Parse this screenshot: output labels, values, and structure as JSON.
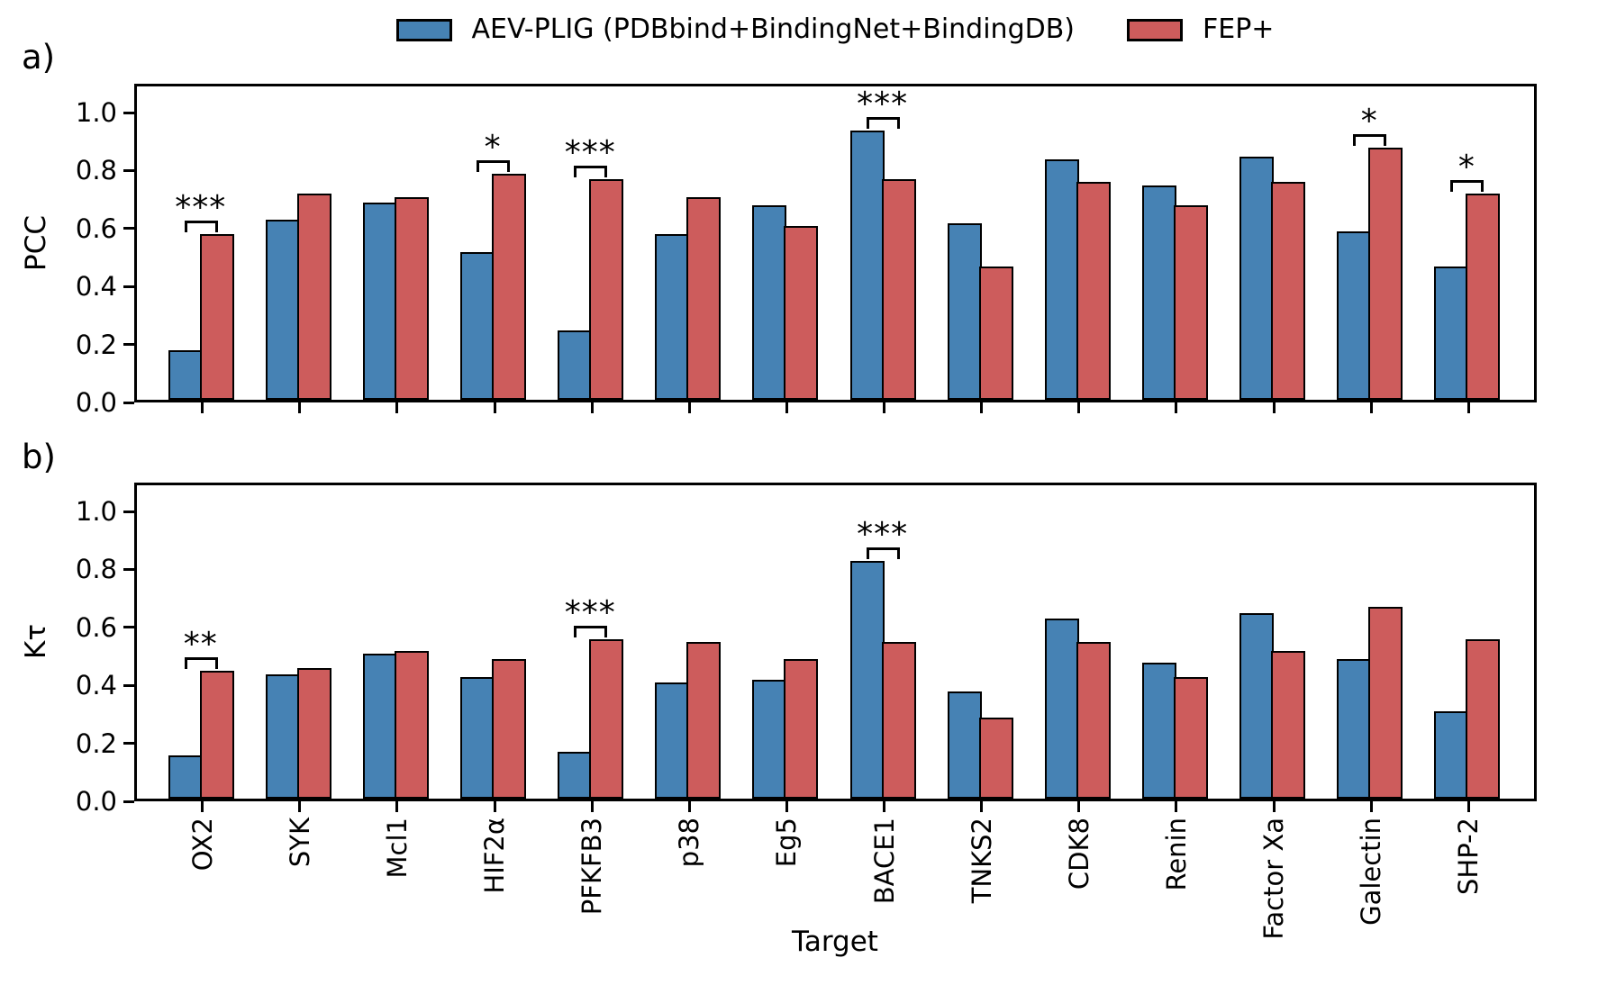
{
  "legend": {
    "items": [
      {
        "label": "AEV-PLIG (PDBbind+BindingNet+BindingDB)",
        "color": "#4682B4"
      },
      {
        "label": "FEP+",
        "color": "#CD5C5C"
      }
    ]
  },
  "panel_labels": {
    "a": "a)",
    "b": "b)"
  },
  "xlabel": "Target",
  "chart_data": [
    {
      "type": "bar",
      "panel": "a",
      "ylabel": "PCC",
      "ylim": [
        0,
        1.1
      ],
      "yticks": [
        "0.0",
        "0.2",
        "0.4",
        "0.6",
        "0.8",
        "1.0"
      ],
      "grid": false,
      "legend_position": "top-center",
      "categories": [
        "OX2",
        "SYK",
        "Mcl1",
        "HIF2α",
        "PFKFB3",
        "p38",
        "Eg5",
        "BACE1",
        "TNKS2",
        "CDK8",
        "Renin",
        "Factor Xa",
        "Galectin",
        "SHP-2"
      ],
      "series": [
        {
          "name": "AEV-PLIG (PDBbind+BindingNet+BindingDB)",
          "color": "#4682B4",
          "values": [
            0.17,
            0.62,
            0.68,
            0.51,
            0.24,
            0.57,
            0.67,
            0.93,
            0.61,
            0.83,
            0.74,
            0.84,
            0.58,
            0.46
          ]
        },
        {
          "name": "FEP+",
          "color": "#CD5C5C",
          "values": [
            0.57,
            0.71,
            0.7,
            0.78,
            0.76,
            0.7,
            0.6,
            0.76,
            0.46,
            0.75,
            0.67,
            0.75,
            0.87,
            0.71
          ]
        }
      ],
      "significance": [
        {
          "category": "OX2",
          "label": "***"
        },
        {
          "category": "HIF2α",
          "label": "*"
        },
        {
          "category": "PFKFB3",
          "label": "***"
        },
        {
          "category": "BACE1",
          "label": "***"
        },
        {
          "category": "Galectin",
          "label": "*"
        },
        {
          "category": "SHP-2",
          "label": "*"
        }
      ]
    },
    {
      "type": "bar",
      "panel": "b",
      "ylabel": "Kτ",
      "ylim": [
        0,
        1.1
      ],
      "yticks": [
        "0.0",
        "0.2",
        "0.4",
        "0.6",
        "0.8",
        "1.0"
      ],
      "grid": false,
      "categories": [
        "OX2",
        "SYK",
        "Mcl1",
        "HIF2α",
        "PFKFB3",
        "p38",
        "Eg5",
        "BACE1",
        "TNKS2",
        "CDK8",
        "Renin",
        "Factor Xa",
        "Galectin",
        "SHP-2"
      ],
      "series": [
        {
          "name": "AEV-PLIG (PDBbind+BindingNet+BindingDB)",
          "color": "#4682B4",
          "values": [
            0.15,
            0.43,
            0.5,
            0.42,
            0.16,
            0.4,
            0.41,
            0.82,
            0.37,
            0.62,
            0.47,
            0.64,
            0.48,
            0.3
          ]
        },
        {
          "name": "FEP+",
          "color": "#CD5C5C",
          "values": [
            0.44,
            0.45,
            0.51,
            0.48,
            0.55,
            0.54,
            0.48,
            0.54,
            0.28,
            0.54,
            0.42,
            0.51,
            0.66,
            0.55
          ]
        }
      ],
      "significance": [
        {
          "category": "OX2",
          "label": "**"
        },
        {
          "category": "PFKFB3",
          "label": "***"
        },
        {
          "category": "BACE1",
          "label": "***"
        }
      ]
    }
  ]
}
